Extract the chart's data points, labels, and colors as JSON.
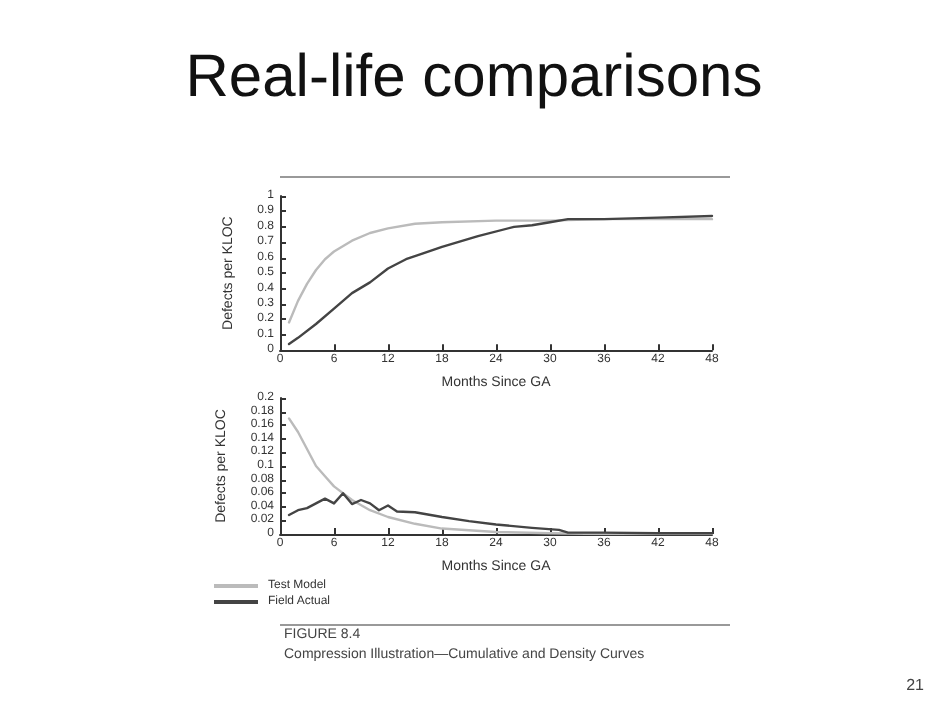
{
  "chart_data": [
    {
      "type": "line",
      "title": "Real-life comparisons",
      "xlabel": "Months Since GA",
      "ylabel": "Defects per KLOC",
      "xlim": [
        0,
        48
      ],
      "xticks": [
        0,
        6,
        12,
        18,
        24,
        30,
        36,
        42,
        48
      ],
      "ylim": [
        0,
        1
      ],
      "yticks": [
        0,
        0.1,
        0.2,
        0.3,
        0.4,
        0.5,
        0.6,
        0.7,
        0.8,
        0.9,
        1
      ],
      "grid": false,
      "legend": false,
      "marker": "none",
      "line_style": "solid",
      "series": [
        {
          "color": "#bbbbbb",
          "x": [
            1,
            2,
            3,
            4,
            5,
            6,
            8,
            10,
            12,
            15,
            18,
            24,
            30,
            36,
            48
          ],
          "values": [
            0.18,
            0.32,
            0.43,
            0.52,
            0.59,
            0.64,
            0.71,
            0.76,
            0.79,
            0.82,
            0.83,
            0.84,
            0.84,
            0.85,
            0.85
          ]
        },
        {
          "color": "#444444",
          "x": [
            1,
            2,
            4,
            6,
            8,
            10,
            12,
            14,
            18,
            22,
            26,
            28,
            30,
            32,
            36,
            42,
            48
          ],
          "values": [
            0.04,
            0.08,
            0.17,
            0.27,
            0.37,
            0.44,
            0.53,
            0.59,
            0.67,
            0.74,
            0.8,
            0.81,
            0.83,
            0.85,
            0.85,
            0.86,
            0.87
          ]
        }
      ]
    },
    {
      "type": "line",
      "xlabel": "Months Since GA",
      "ylabel": "Defects per KLOC",
      "xlim": [
        0,
        48
      ],
      "xticks": [
        0,
        6,
        12,
        18,
        24,
        30,
        36,
        42,
        48
      ],
      "ylim": [
        0,
        0.2
      ],
      "yticks": [
        0,
        0.02,
        0.04,
        0.06,
        0.08,
        0.1,
        0.12,
        0.14,
        0.16,
        0.18,
        0.2
      ],
      "grid": false,
      "legend": "bottom left",
      "marker": "none",
      "line_style": "solid",
      "annotations": [
        "FIGURE 8.4",
        "Compression Illustration—Cumulative and Density Curves",
        "21"
      ],
      "series": [
        {
          "name": "Test Model",
          "color": "#bbbbbb",
          "x": [
            1,
            2,
            3,
            4,
            5,
            6,
            8,
            10,
            12,
            15,
            18,
            24,
            30,
            36,
            48
          ],
          "values": [
            0.17,
            0.15,
            0.125,
            0.1,
            0.085,
            0.07,
            0.05,
            0.035,
            0.025,
            0.015,
            0.008,
            0.003,
            0.001,
            0,
            0
          ]
        },
        {
          "name": "Field Actual",
          "color": "#444444",
          "x": [
            1,
            2,
            3,
            4,
            5,
            6,
            7,
            8,
            9,
            10,
            11,
            12,
            13,
            15,
            18,
            21,
            24,
            28,
            31,
            32,
            36,
            42,
            48
          ],
          "values": [
            0.028,
            0.035,
            0.038,
            0.045,
            0.052,
            0.045,
            0.06,
            0.044,
            0.05,
            0.045,
            0.035,
            0.042,
            0.033,
            0.032,
            0.025,
            0.019,
            0.014,
            0.009,
            0.006,
            0.002,
            0.002,
            0.001,
            0.001
          ]
        }
      ]
    }
  ]
}
